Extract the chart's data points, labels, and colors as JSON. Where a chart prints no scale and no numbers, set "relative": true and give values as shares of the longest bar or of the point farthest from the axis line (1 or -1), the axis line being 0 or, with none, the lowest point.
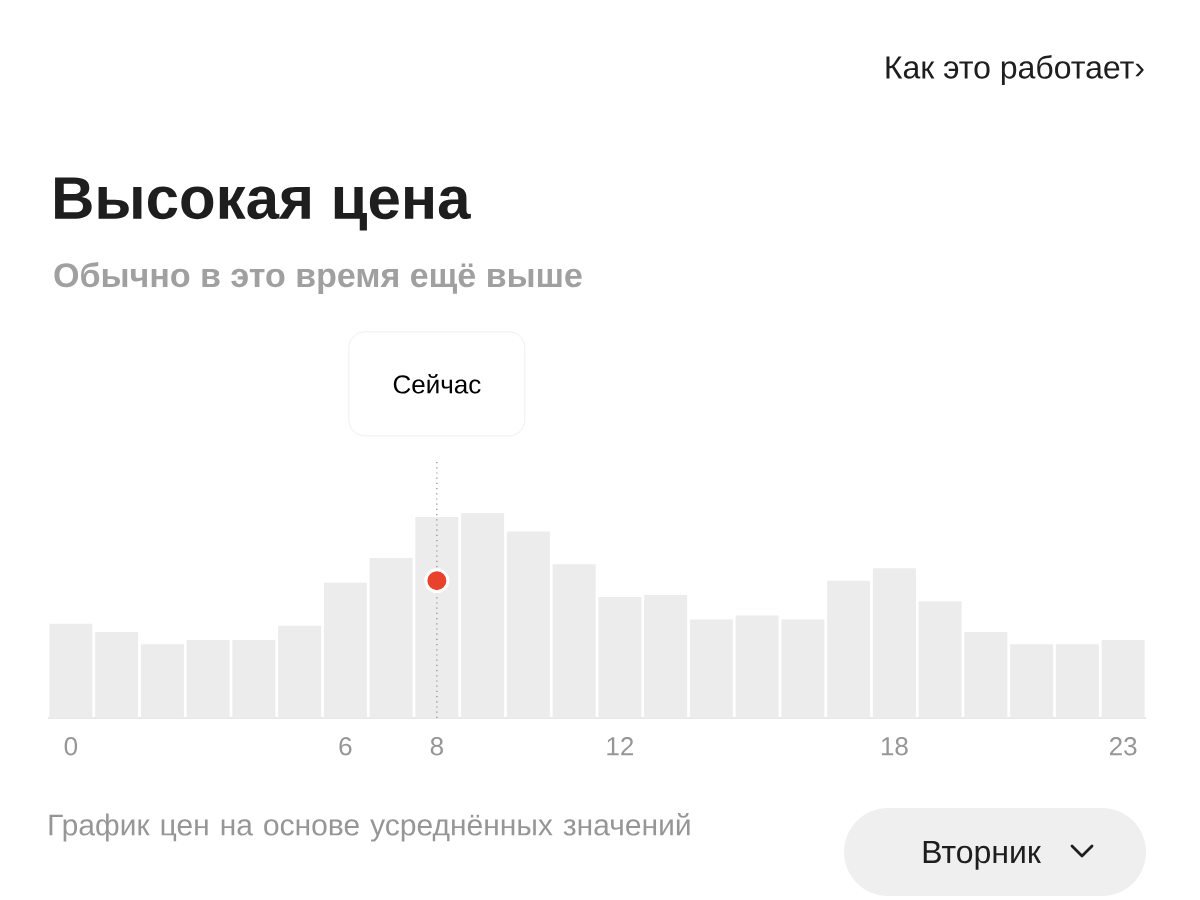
{
  "chart_data": {
    "type": "bar",
    "title": "Высокая цена",
    "subtitle": "Обычно в это время ещё выше",
    "relative": true,
    "categories": [
      "0",
      null,
      null,
      null,
      null,
      null,
      "6",
      null,
      "8",
      null,
      null,
      null,
      "12",
      null,
      null,
      null,
      null,
      null,
      "18",
      null,
      null,
      null,
      null,
      "23"
    ],
    "series": [
      {
        "color": "#ececec",
        "values": [
          0.46,
          0.42,
          0.36,
          0.38,
          0.38,
          0.45,
          0.66,
          0.78,
          0.98,
          1,
          0.91,
          0.75,
          0.59,
          0.6,
          0.48,
          0.5,
          0.48,
          0.67,
          0.73,
          0.57,
          0.42,
          0.36,
          0.36,
          0.38
        ]
      },
      {
        "type": "scatter",
        "color": "#e8412c",
        "x": [
          "8"
        ],
        "values": [
          0.67
        ]
      }
    ],
    "ref_lines": [
      {
        "axis": "x",
        "value": "8",
        "label": "Сейчас",
        "color": "#888888",
        "line_style": "dotted"
      }
    ],
    "annotations": [
      "Как это работает›",
      "График цен на основе усреднённых значений",
      "Вторник"
    ]
  }
}
